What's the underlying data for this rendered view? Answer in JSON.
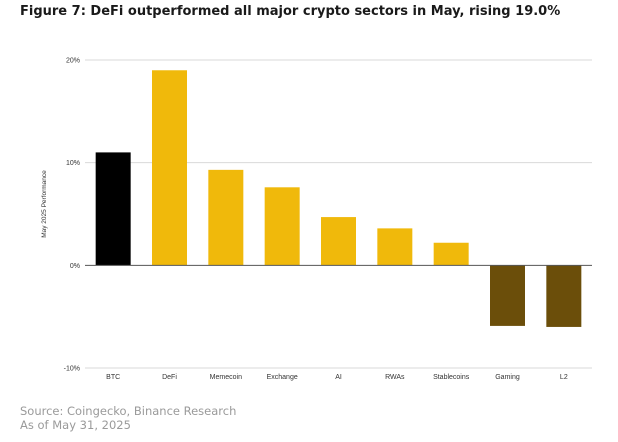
{
  "figure_title": "Figure 7: DeFi outperformed all major crypto sectors in May, rising 19.0%",
  "source": {
    "line1": "Source: Coingecko, Binance Research",
    "line2": "As of May 31, 2025"
  },
  "colors": {
    "btc": "#000000",
    "positive": "#F0B90B",
    "negative": "#6B4E0A",
    "grid": "#d9d9d9",
    "axis": "#555555"
  },
  "chart_data": {
    "type": "bar",
    "title": "",
    "xlabel": "",
    "ylabel": "May 2025 Performance",
    "categories": [
      "BTC",
      "DeFi",
      "Memecoin",
      "Exchange",
      "AI",
      "RWAs",
      "Stablecoins",
      "Gaming",
      "L2"
    ],
    "values": [
      11.0,
      19.0,
      9.3,
      7.6,
      4.7,
      3.6,
      2.2,
      -5.9,
      -6.0
    ],
    "ylim": [
      -10,
      20
    ],
    "yticks": [
      -10,
      0,
      10,
      20
    ],
    "ytick_labels": [
      "-10%",
      "0%",
      "10%",
      "20%"
    ],
    "grid": true,
    "legend": "none"
  }
}
